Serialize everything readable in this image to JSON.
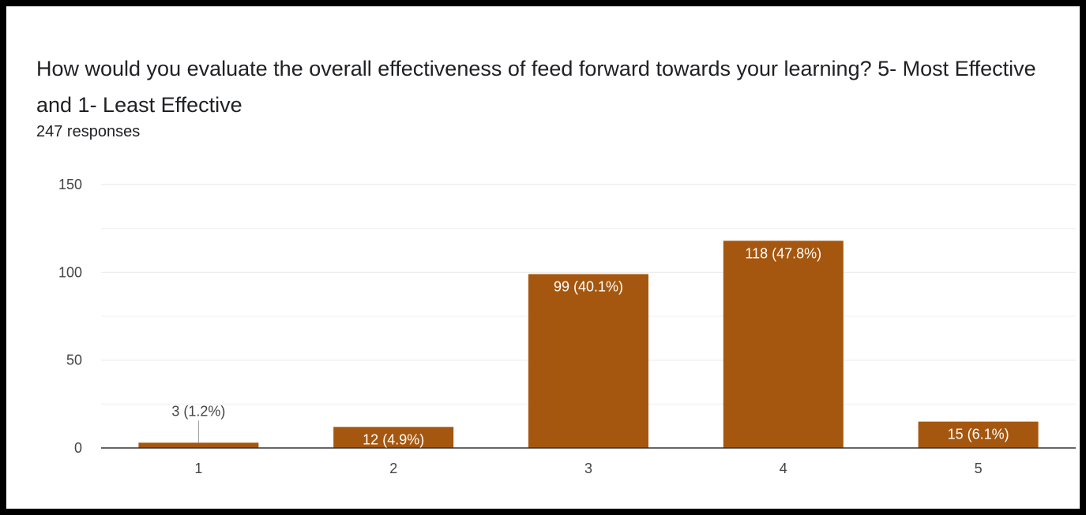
{
  "title": "How would you evaluate the overall effectiveness of feed forward towards your learning? 5- Most Effective and 1- Least Effective",
  "responses_label": "247 responses",
  "chart_data": {
    "type": "bar",
    "categories": [
      "1",
      "2",
      "3",
      "4",
      "5"
    ],
    "values": [
      3,
      12,
      99,
      118,
      15
    ],
    "data_labels": [
      "3 (1.2%)",
      "12 (4.9%)",
      "99 (40.1%)",
      "118 (47.8%)",
      "15 (6.1%)"
    ],
    "yticks": [
      "0",
      "50",
      "100",
      "150"
    ],
    "ylim": [
      0,
      150
    ],
    "xlabel": "",
    "ylabel": "",
    "grid": true,
    "bar_color": "#a5570f",
    "grid_color": "#ebebeb",
    "axis_color": "#333333"
  }
}
